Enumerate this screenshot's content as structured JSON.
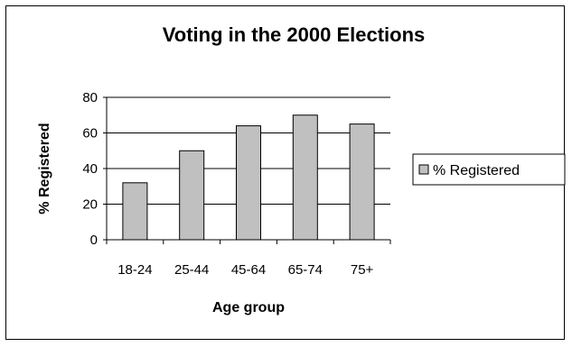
{
  "chart_data": {
    "type": "bar",
    "title": "Voting in the 2000 Elections",
    "xlabel": "Age group",
    "ylabel": "% Registered",
    "categories": [
      "18-24",
      "25-44",
      "45-64",
      "65-74",
      "75+"
    ],
    "series": [
      {
        "name": "% Registered",
        "values": [
          32,
          50,
          64,
          70,
          65
        ]
      }
    ],
    "ylim": [
      0,
      80
    ],
    "yticks": [
      "0",
      "20",
      "40",
      "60",
      "80"
    ],
    "grid": true,
    "legend_position": "right",
    "colors": {
      "bar_fill": "#c0c0c0",
      "bar_stroke": "#000000",
      "grid": "#000000",
      "frame": "#000000"
    }
  }
}
